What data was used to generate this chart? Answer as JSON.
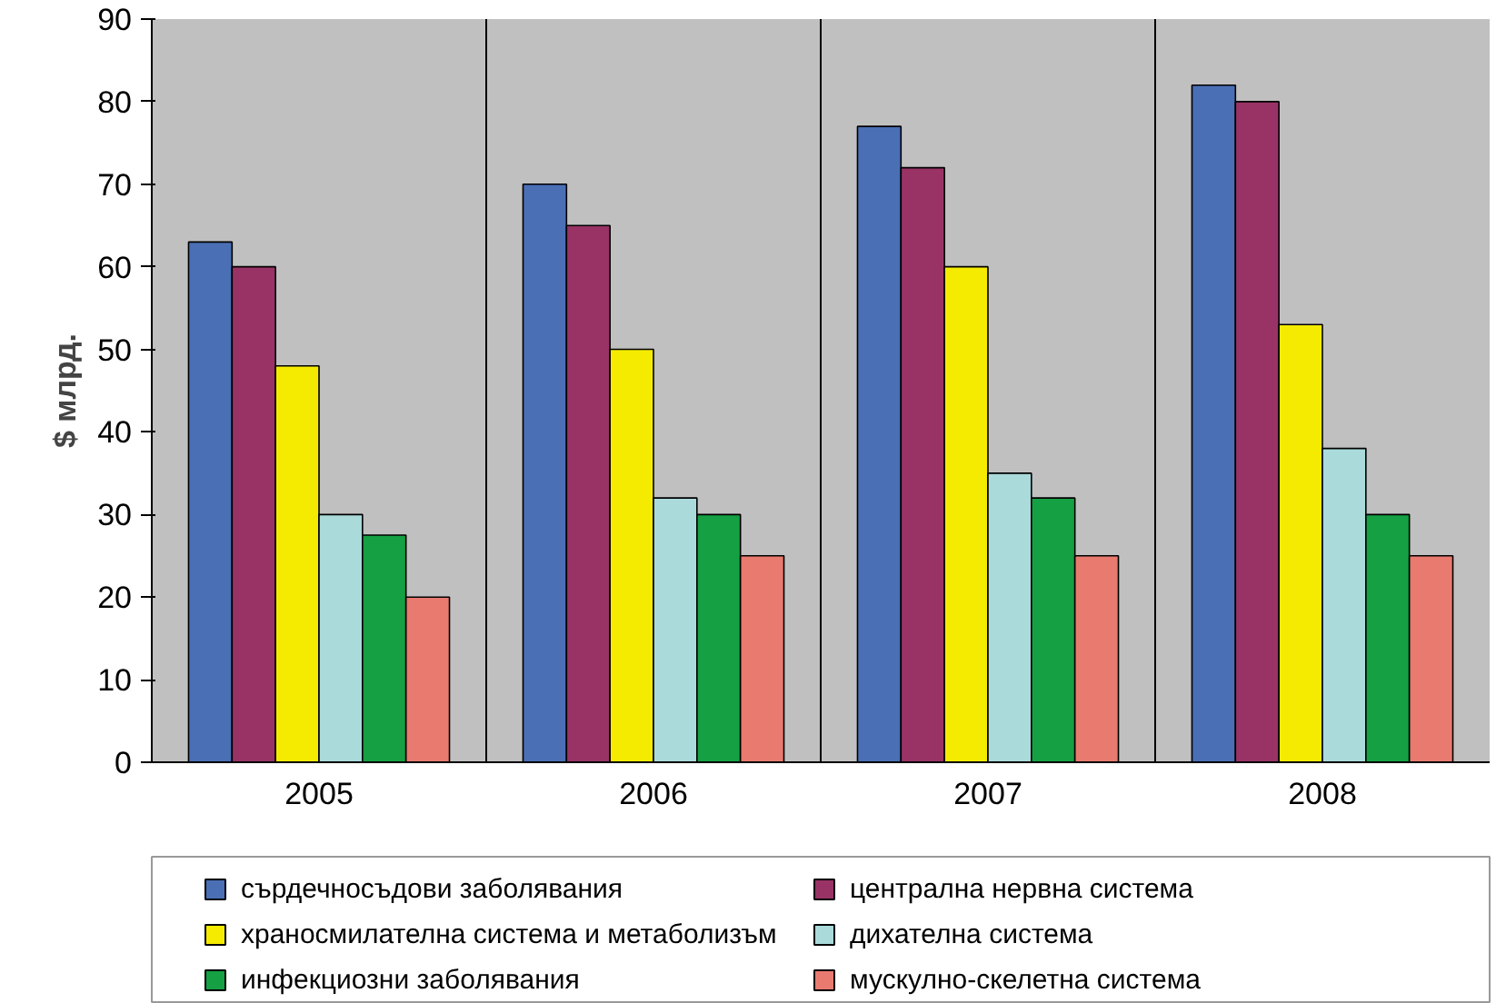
{
  "chart_data": {
    "type": "bar",
    "ylabel": "$ млрд.",
    "categories": [
      "2005",
      "2006",
      "2007",
      "2008"
    ],
    "series": [
      {
        "name": "сърдечносъдови заболявания",
        "color": "#4a6fb5",
        "values": [
          63,
          70,
          77,
          82
        ]
      },
      {
        "name": "централна нервна система",
        "color": "#993366",
        "values": [
          60,
          65,
          72,
          80
        ]
      },
      {
        "name": "храносмилателна система и метаболизъм",
        "color": "#f5eb00",
        "values": [
          48,
          50,
          60,
          53
        ]
      },
      {
        "name": "дихателна система",
        "color": "#aadada",
        "values": [
          30,
          32,
          35,
          38
        ]
      },
      {
        "name": "инфекциозни заболявания",
        "color": "#14a043",
        "values": [
          27.5,
          30,
          32,
          30
        ]
      },
      {
        "name": "мускулно-скелетна система",
        "color": "#e87a70",
        "values": [
          20,
          25,
          25,
          25
        ]
      }
    ],
    "ylim": [
      0,
      90
    ],
    "yticks": [
      0,
      10,
      20,
      30,
      40,
      50,
      60,
      70,
      80,
      90
    ],
    "grid": "x",
    "legend": "bottom"
  }
}
